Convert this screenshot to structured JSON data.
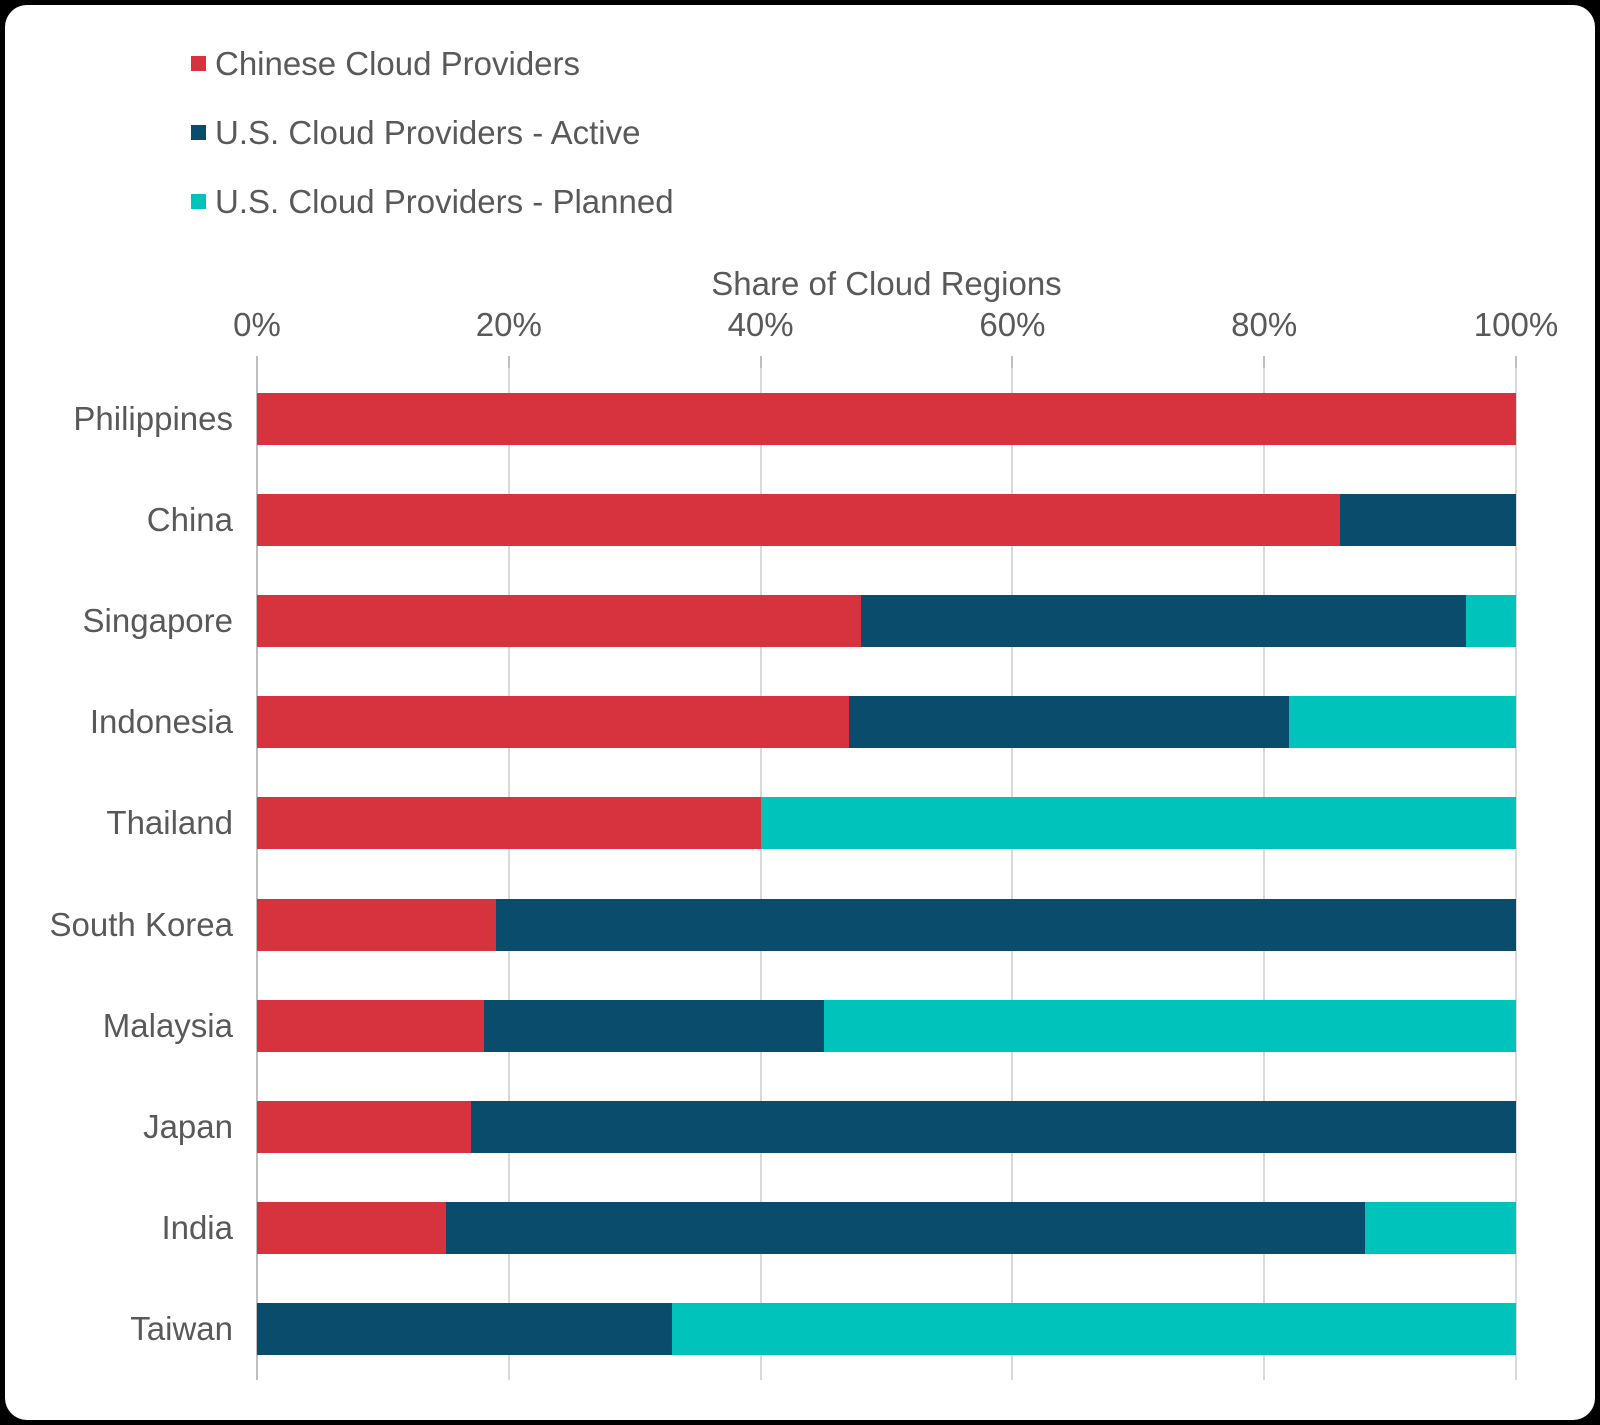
{
  "chart_data": {
    "type": "bar",
    "orientation": "horizontal",
    "stacked": true,
    "title": "Share of Cloud Regions",
    "categories": [
      "Philippines",
      "China",
      "Singapore",
      "Indonesia",
      "Thailand",
      "South Korea",
      "Malaysia",
      "Japan",
      "India",
      "Taiwan"
    ],
    "series": [
      {
        "name": "Chinese Cloud Providers",
        "color": "#D7333E",
        "values": [
          100,
          86,
          48,
          47,
          40,
          19,
          18,
          17,
          15,
          0
        ]
      },
      {
        "name": "U.S. Cloud Providers - Active",
        "color": "#0A4C6B",
        "values": [
          0,
          14,
          48,
          35,
          0,
          81,
          27,
          83,
          73,
          33
        ]
      },
      {
        "name": "U.S. Cloud Providers - Planned",
        "color": "#00C4BC",
        "values": [
          0,
          0,
          4,
          18,
          60,
          0,
          55,
          0,
          12,
          67
        ]
      }
    ],
    "x_ticks": [
      "0%",
      "20%",
      "40%",
      "60%",
      "80%",
      "100%"
    ],
    "xlim": [
      0,
      100
    ],
    "grid": true,
    "legend_position": "top-left",
    "colors": {
      "text": "#595959",
      "gridline": "#D9D9D9",
      "axis_line": "#BFBFBF",
      "background": "#FFFFFF"
    }
  }
}
